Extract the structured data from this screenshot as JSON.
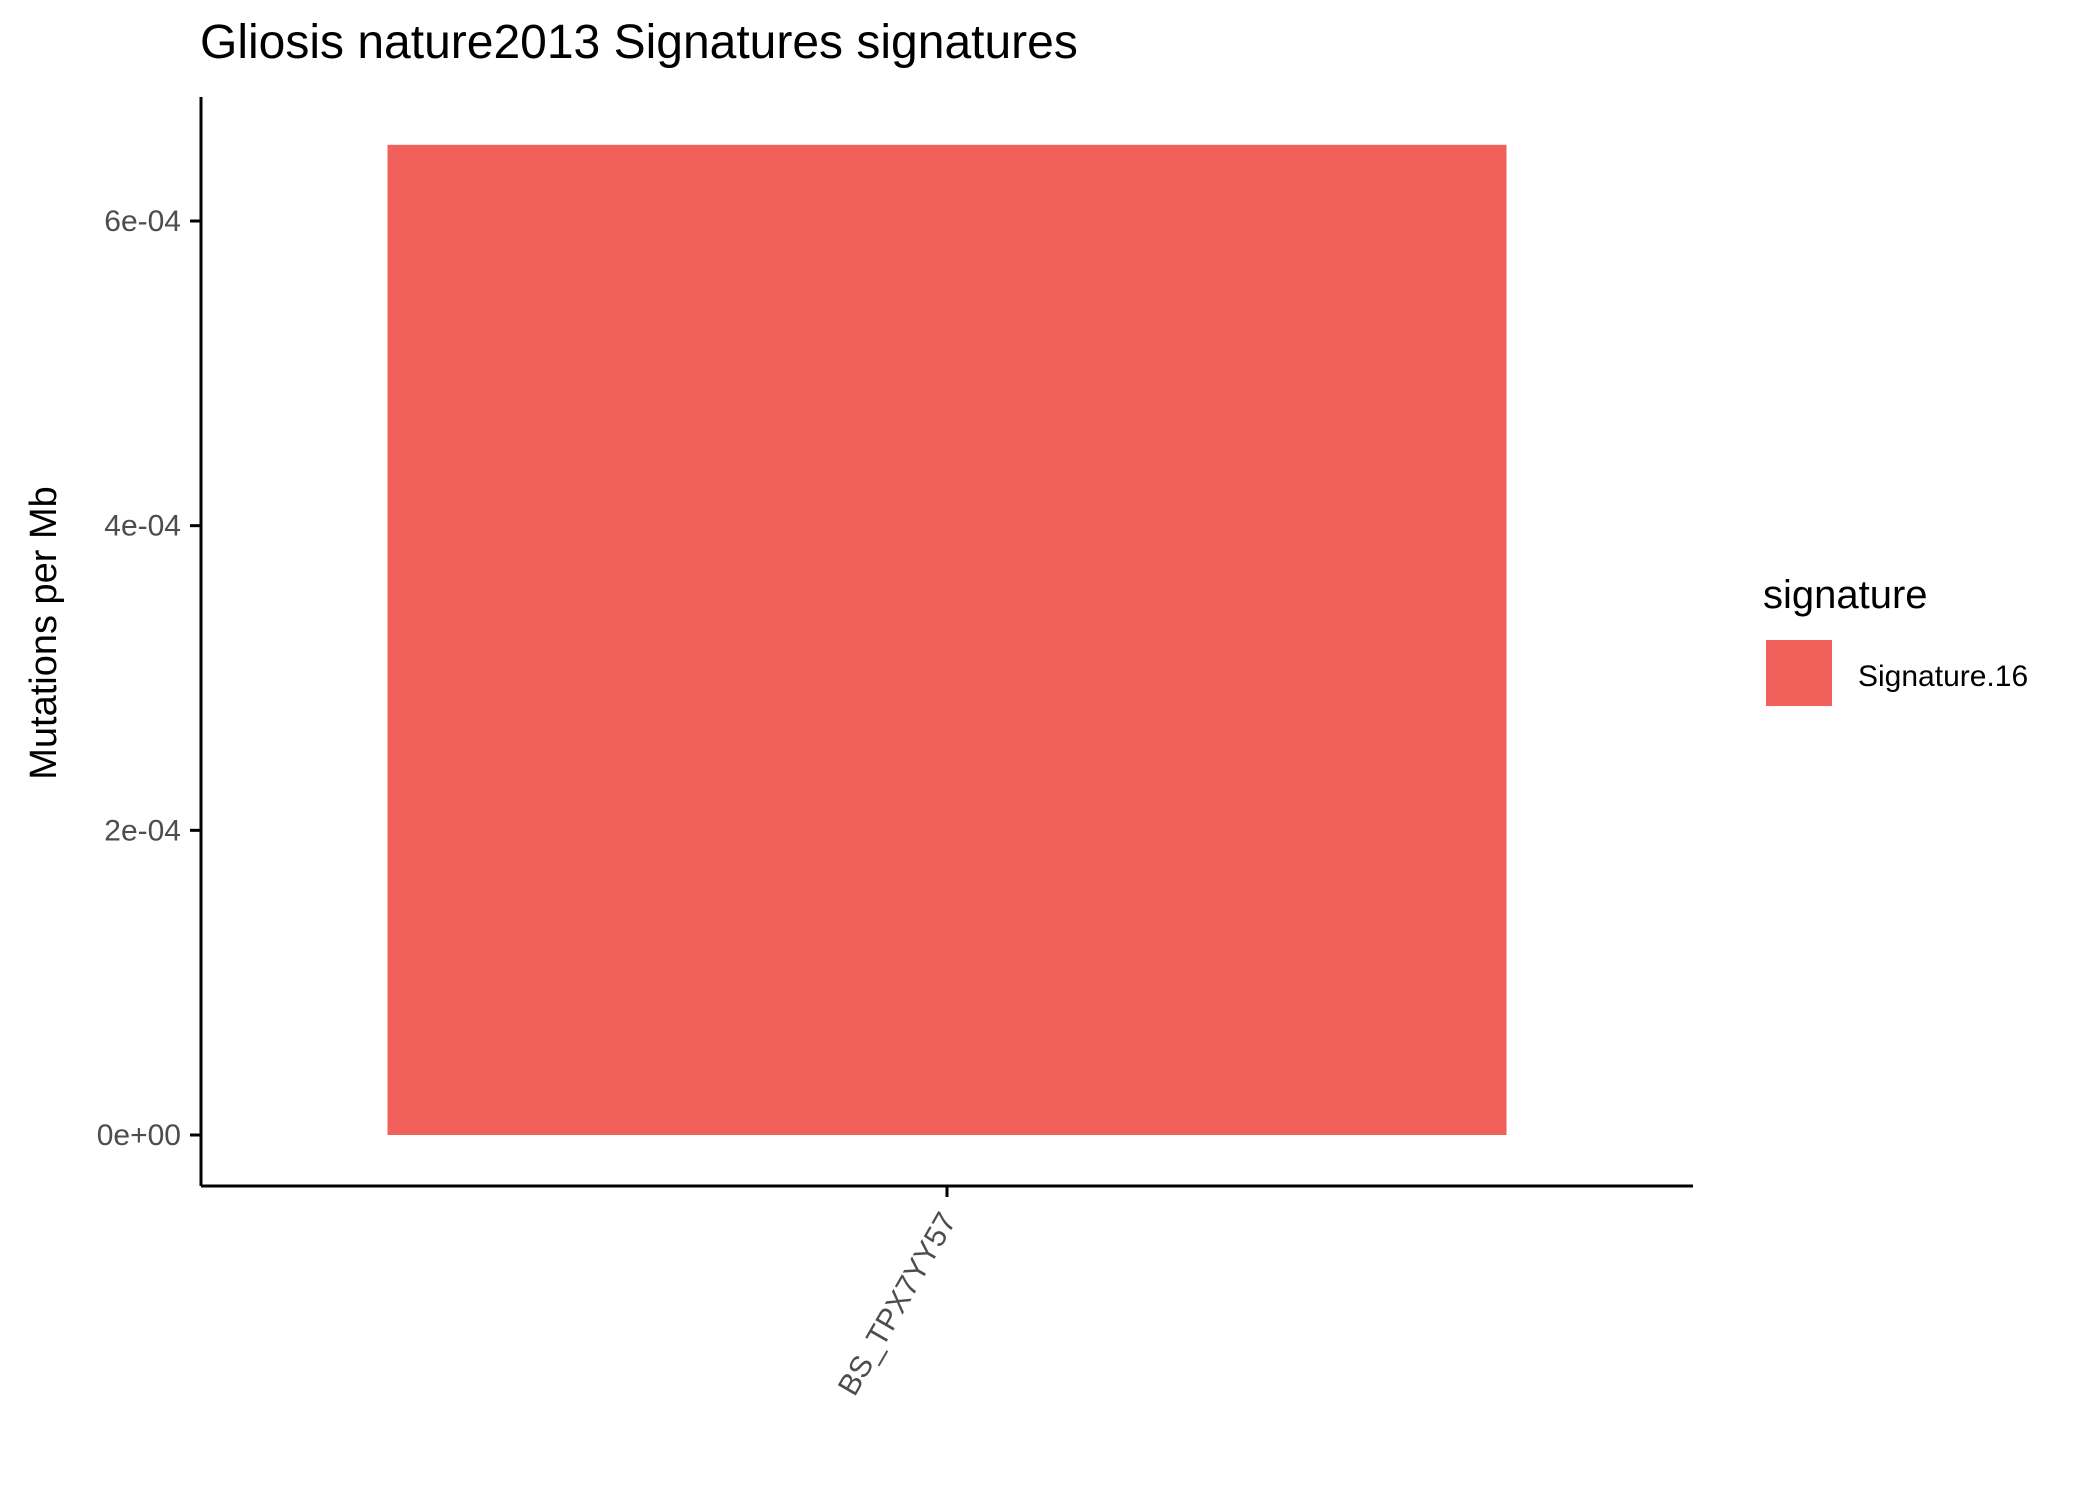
{
  "chart_data": {
    "type": "bar",
    "title": "Gliosis nature2013 Signatures signatures",
    "xlabel": "",
    "ylabel": "Mutations per Mb",
    "categories": [
      "BS_TPX7YY57"
    ],
    "series": [
      {
        "name": "Signature.16",
        "values": [
          0.00065
        ],
        "color": "#F2605C"
      }
    ],
    "ylim": [
      0,
      0.00068
    ],
    "y_ticks": [
      0,
      0.0002,
      0.0004,
      0.0006
    ],
    "y_tick_labels": [
      "0e+00",
      "2e-04",
      "4e-04",
      "6e-04"
    ],
    "legend": {
      "title": "signature",
      "position": "right"
    },
    "grid": false
  }
}
